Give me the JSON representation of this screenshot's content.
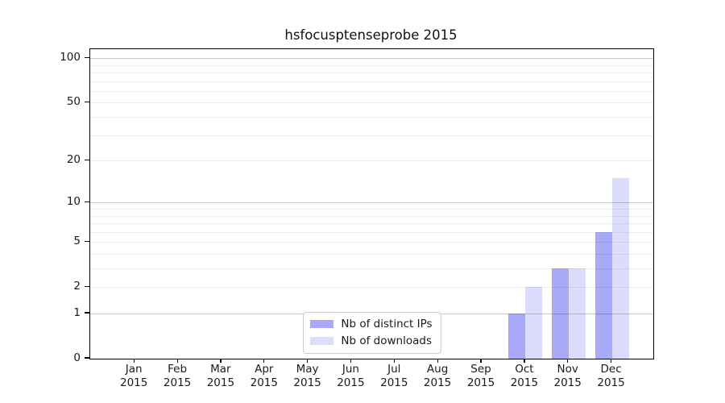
{
  "figure": {
    "title": "hsfocusptenseprobe 2015"
  },
  "chart_data": {
    "type": "bar",
    "title": "hsfocusptenseprobe 2015",
    "categories": [
      "Jan 2015",
      "Feb 2015",
      "Mar 2015",
      "Apr 2015",
      "May 2015",
      "Jun 2015",
      "Jul 2015",
      "Aug 2015",
      "Sep 2015",
      "Oct 2015",
      "Nov 2015",
      "Dec 2015"
    ],
    "x_tick_months": [
      "Jan",
      "Feb",
      "Mar",
      "Apr",
      "May",
      "Jun",
      "Jul",
      "Aug",
      "Sep",
      "Oct",
      "Nov",
      "Dec"
    ],
    "x_tick_year": "2015",
    "series": [
      {
        "name": "Nb of distinct IPs",
        "color": "#a8a8f8",
        "fill": "rgba(10,10,240,0.35)",
        "values": [
          0,
          0,
          0,
          0,
          0,
          0,
          0,
          0,
          0,
          1,
          3,
          6
        ]
      },
      {
        "name": "Nb of downloads",
        "color": "#dcdcfb",
        "fill": "rgba(10,10,240,0.14)",
        "values": [
          0,
          0,
          0,
          0,
          0,
          0,
          0,
          0,
          0,
          2,
          3,
          15
        ]
      }
    ],
    "yscale": "log1p",
    "ylim": [
      0,
      110
    ],
    "yticks": [
      0,
      1,
      2,
      5,
      10,
      20,
      50,
      100
    ],
    "grid": {
      "on": true,
      "major_values": [
        1,
        10,
        100
      ],
      "minor_values": [
        2,
        3,
        4,
        5,
        6,
        7,
        8,
        9,
        20,
        30,
        40,
        50,
        60,
        70,
        80,
        90
      ],
      "major_color": "#c9c9c9",
      "minor_color": "#ededed"
    },
    "legend": {
      "position": "lower center"
    }
  }
}
